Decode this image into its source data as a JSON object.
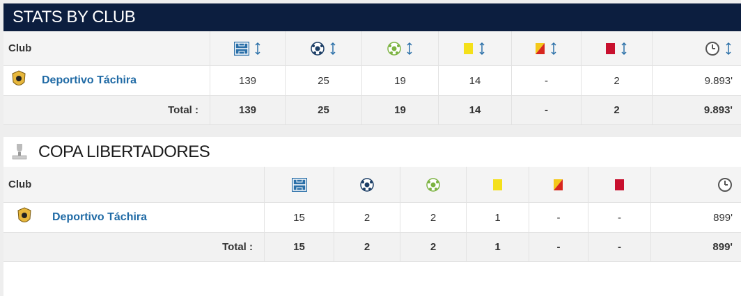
{
  "sections": [
    {
      "title": "STATS BY CLUB",
      "header": "Club",
      "rows": [
        {
          "club": "Deportivo Táchira",
          "cells": [
            "139",
            "25",
            "19",
            "14",
            "-",
            "2",
            "9.893'"
          ]
        }
      ],
      "total": {
        "label": "Total :",
        "cells": [
          "139",
          "25",
          "19",
          "14",
          "-",
          "2",
          "9.893'"
        ]
      }
    },
    {
      "title": "COPA LIBERTADORES",
      "header": "Club",
      "rows": [
        {
          "club": "Deportivo Táchira",
          "cells": [
            "15",
            "2",
            "2",
            "1",
            "-",
            "-",
            "899'"
          ]
        }
      ],
      "total": {
        "label": "Total :",
        "cells": [
          "15",
          "2",
          "2",
          "1",
          "-",
          "-",
          "899'"
        ]
      }
    }
  ]
}
